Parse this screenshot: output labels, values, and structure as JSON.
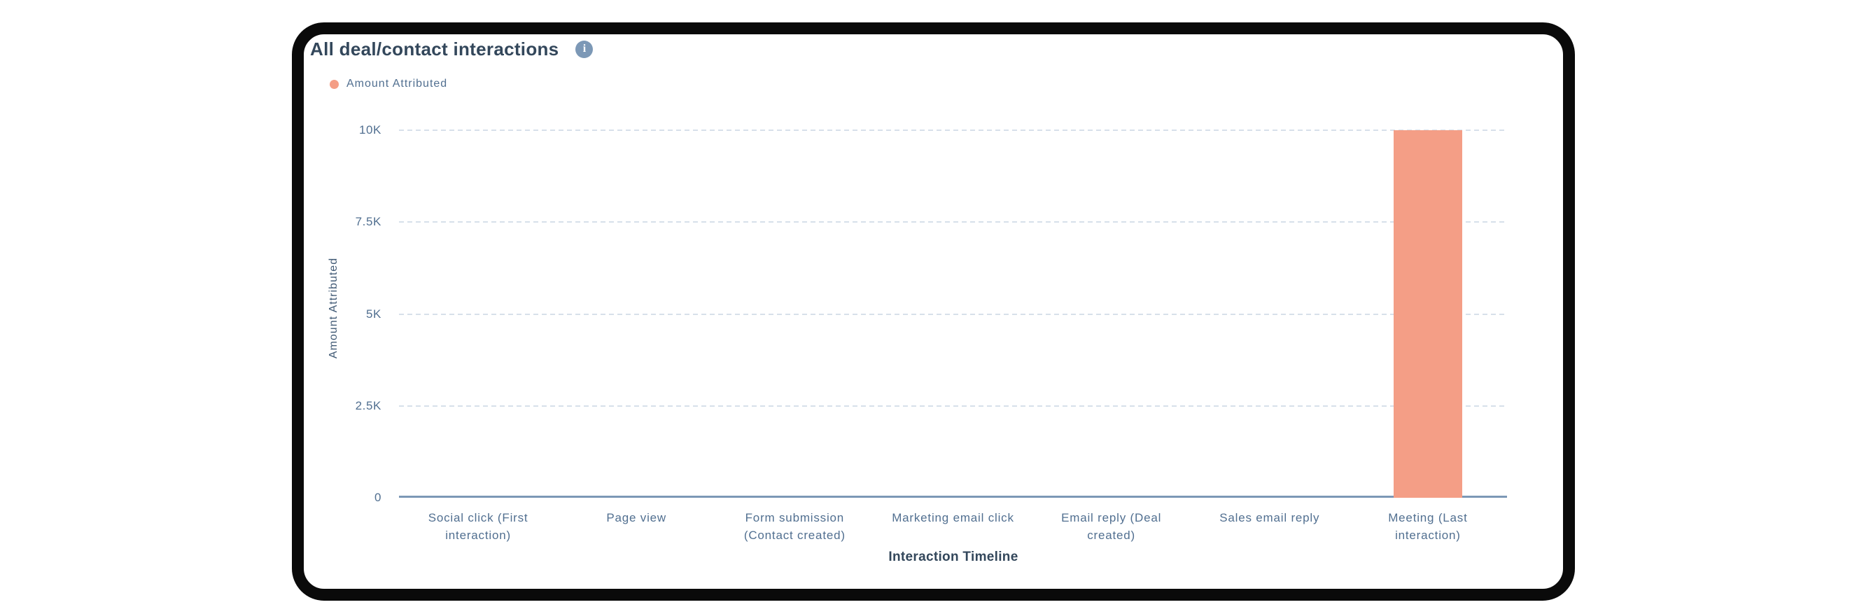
{
  "card": {
    "title": "All deal/contact interactions",
    "info_glyph": "i"
  },
  "legend": {
    "items": [
      {
        "label": "Amount Attributed",
        "color": "#f49e86"
      }
    ]
  },
  "chart_data": {
    "type": "bar",
    "title": "All deal/contact interactions",
    "xlabel": "Interaction Timeline",
    "ylabel": "Amount Attributed",
    "ylim": [
      0,
      10000
    ],
    "grid": "horizontal dashed",
    "legend_position": "top-left",
    "yticks": [
      {
        "label": "0",
        "value": 0
      },
      {
        "label": "2.5K",
        "value": 2500
      },
      {
        "label": "5K",
        "value": 5000
      },
      {
        "label": "7.5K",
        "value": 7500
      },
      {
        "label": "10K",
        "value": 10000
      }
    ],
    "categories": [
      "Social click (First interaction)",
      "Page view",
      "Form submission (Contact created)",
      "Marketing email click",
      "Email reply (Deal created)",
      "Sales email reply",
      "Meeting (Last interaction)"
    ],
    "category_label_lines": [
      [
        "Social click (First",
        "interaction)"
      ],
      [
        "Page view"
      ],
      [
        "Form submission",
        "(Contact created)"
      ],
      [
        "Marketing email click"
      ],
      [
        "Email reply (Deal",
        "created)"
      ],
      [
        "Sales email reply"
      ],
      [
        "Meeting (Last",
        "interaction)"
      ]
    ],
    "series": [
      {
        "name": "Amount Attributed",
        "color": "#f49e86",
        "values": [
          0,
          0,
          0,
          0,
          0,
          0,
          10000
        ]
      }
    ]
  },
  "colors": {
    "bar": "#f49e86",
    "card_border": "#0a0a0a",
    "title_text": "#33475b",
    "axis_text": "#516f90",
    "gridline": "#d7e0ea",
    "axis_line": "#7c98b6",
    "info_icon": "#7c98b6"
  }
}
